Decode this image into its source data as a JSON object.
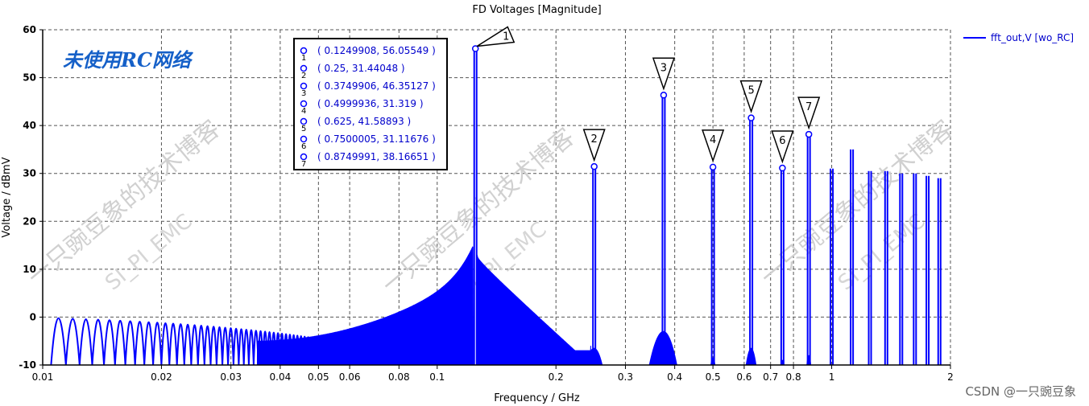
{
  "chart_data": {
    "type": "line",
    "title": "FD Voltages [Magnitude]",
    "xlabel": "Frequency / GHz",
    "ylabel": "Voltage / dBmV",
    "x_scale": "log",
    "xlim": [
      0.01,
      2
    ],
    "ylim": [
      -10,
      60
    ],
    "x_ticks": [
      0.01,
      0.02,
      0.03,
      0.04,
      0.05,
      0.06,
      0.08,
      0.1,
      0.2,
      0.3,
      0.4,
      0.5,
      0.6,
      0.7,
      0.8,
      1,
      2
    ],
    "x_tick_labels": [
      "0.01",
      "0.02",
      "0.03",
      "0.04",
      "0.05",
      "0.06",
      "0.08",
      "0.1",
      "0.2",
      "0.3",
      "0.4",
      "0.5",
      "0.6",
      "0.7",
      "0.8",
      "1",
      "2"
    ],
    "y_ticks": [
      -10,
      0,
      10,
      20,
      30,
      40,
      50,
      60
    ],
    "y_tick_labels": [
      "-10",
      "0",
      "10",
      "20",
      "30",
      "40",
      "50",
      "60"
    ],
    "grid": true,
    "legend_position": "top-right",
    "series": [
      {
        "name": "fft_out,V [wo_RC]",
        "color": "#0000ff",
        "note": "dense spectrum; harmonic peaks listed below",
        "peaks": [
          {
            "x": 0.1249908,
            "y": 56.05549
          },
          {
            "x": 0.25,
            "y": 31.44048
          },
          {
            "x": 0.3749906,
            "y": 46.35127
          },
          {
            "x": 0.4999936,
            "y": 31.319
          },
          {
            "x": 0.625,
            "y": 41.58893
          },
          {
            "x": 0.7500005,
            "y": 31.11676
          },
          {
            "x": 0.8749991,
            "y": 38.16651
          },
          {
            "x": 1.0,
            "y": 31
          },
          {
            "x": 1.125,
            "y": 35
          },
          {
            "x": 1.25,
            "y": 30.5
          },
          {
            "x": 1.375,
            "y": 30.5
          },
          {
            "x": 1.5,
            "y": 30
          },
          {
            "x": 1.625,
            "y": 30
          },
          {
            "x": 1.75,
            "y": 29.5
          },
          {
            "x": 1.875,
            "y": 29
          }
        ]
      }
    ],
    "markers": [
      {
        "id": "1",
        "label": "1",
        "x": 0.1249908,
        "y": 56.05549,
        "text": "( 0.1249908, 56.05549 )"
      },
      {
        "id": "2",
        "label": "2",
        "x": 0.25,
        "y": 31.44048,
        "text": "( 0.25, 31.44048 )"
      },
      {
        "id": "3",
        "label": "3",
        "x": 0.3749906,
        "y": 46.35127,
        "text": "( 0.3749906, 46.35127 )"
      },
      {
        "id": "4",
        "label": "4",
        "x": 0.4999936,
        "y": 31.319,
        "text": "( 0.4999936, 31.319 )"
      },
      {
        "id": "5",
        "label": "5",
        "x": 0.625,
        "y": 41.58893,
        "text": "( 0.625, 41.58893 )"
      },
      {
        "id": "6",
        "label": "6",
        "x": 0.7500005,
        "y": 31.11676,
        "text": "( 0.7500005, 31.11676 )"
      },
      {
        "id": "7",
        "label": "7",
        "x": 0.8749991,
        "y": 38.16651,
        "text": "( 0.8749991, 38.16651 )"
      }
    ],
    "annotation_text": "未使用RC网络",
    "watermark_text": "一只豌豆象的技术博客",
    "watermark_sub": "SI_PI_EMC",
    "corner_text": "CSDN @一只豌豆象"
  }
}
